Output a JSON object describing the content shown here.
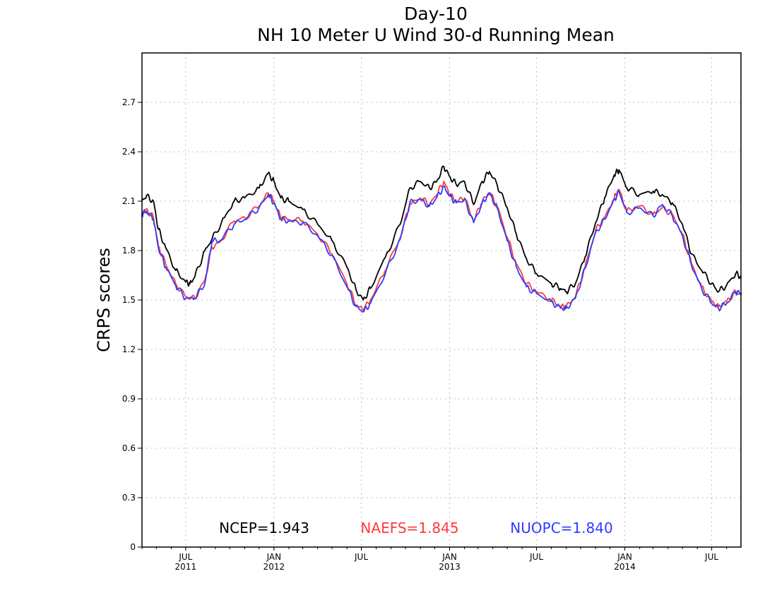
{
  "chart_data": {
    "type": "line",
    "title": "Day-10",
    "subtitle": "NH 10 Meter U Wind 30-d Running Mean",
    "xlabel": "",
    "ylabel": "CRPS scores",
    "xlim": [
      "2011-04-01",
      "2014-08-31"
    ],
    "ylim": [
      0,
      3.0
    ],
    "yticks": [
      {
        "value": 0,
        "label": "0"
      },
      {
        "value": 0.3,
        "label": "0.3"
      },
      {
        "value": 0.6,
        "label": "0.6"
      },
      {
        "value": 0.9,
        "label": "0.9"
      },
      {
        "value": 1.2,
        "label": "1.2"
      },
      {
        "value": 1.5,
        "label": "1.5"
      },
      {
        "value": 1.8,
        "label": "1.8"
      },
      {
        "value": 2.1,
        "label": "2.1"
      },
      {
        "value": 2.4,
        "label": "2.4"
      },
      {
        "value": 2.7,
        "label": "2.7"
      }
    ],
    "xticks": [
      {
        "date": "2011-07-01",
        "label": "JUL",
        "year": "2011"
      },
      {
        "date": "2012-01-01",
        "label": "JAN",
        "year": "2012"
      },
      {
        "date": "2012-07-01",
        "label": "JUL",
        "year": ""
      },
      {
        "date": "2013-01-01",
        "label": "JAN",
        "year": "2013"
      },
      {
        "date": "2013-07-01",
        "label": "JUL",
        "year": ""
      },
      {
        "date": "2014-01-01",
        "label": "JAN",
        "year": "2014"
      },
      {
        "date": "2014-07-01",
        "label": "JUL",
        "year": ""
      }
    ],
    "grid": true,
    "legend_position": "bottom",
    "series": [
      {
        "name": "NCEP",
        "legend_label": "NCEP=1.943",
        "color": "#000000",
        "points": [
          [
            "2011-04-01",
            2.1
          ],
          [
            "2011-04-10",
            2.13
          ],
          [
            "2011-04-25",
            2.1
          ],
          [
            "2011-05-05",
            1.93
          ],
          [
            "2011-05-20",
            1.82
          ],
          [
            "2011-06-10",
            1.68
          ],
          [
            "2011-07-01",
            1.61
          ],
          [
            "2011-07-10",
            1.6
          ],
          [
            "2011-07-20",
            1.64
          ],
          [
            "2011-08-10",
            1.8
          ],
          [
            "2011-08-25",
            1.87
          ],
          [
            "2011-09-20",
            2.0
          ],
          [
            "2011-10-10",
            2.1
          ],
          [
            "2011-11-01",
            2.12
          ],
          [
            "2011-12-01",
            2.18
          ],
          [
            "2011-12-20",
            2.27
          ],
          [
            "2012-01-01",
            2.22
          ],
          [
            "2012-01-15",
            2.12
          ],
          [
            "2012-02-01",
            2.1
          ],
          [
            "2012-03-01",
            2.05
          ],
          [
            "2012-04-01",
            1.96
          ],
          [
            "2012-05-01",
            1.86
          ],
          [
            "2012-06-01",
            1.7
          ],
          [
            "2012-06-20",
            1.56
          ],
          [
            "2012-07-05",
            1.5
          ],
          [
            "2012-07-20",
            1.57
          ],
          [
            "2012-08-20",
            1.76
          ],
          [
            "2012-09-20",
            1.96
          ],
          [
            "2012-10-10",
            2.18
          ],
          [
            "2012-11-01",
            2.22
          ],
          [
            "2012-11-20",
            2.18
          ],
          [
            "2012-12-05",
            2.22
          ],
          [
            "2012-12-20",
            2.31
          ],
          [
            "2013-01-01",
            2.25
          ],
          [
            "2013-01-15",
            2.2
          ],
          [
            "2013-02-01",
            2.22
          ],
          [
            "2013-02-20",
            2.08
          ],
          [
            "2013-03-10",
            2.22
          ],
          [
            "2013-03-25",
            2.28
          ],
          [
            "2013-04-10",
            2.2
          ],
          [
            "2013-05-01",
            2.06
          ],
          [
            "2013-05-20",
            1.9
          ],
          [
            "2013-06-10",
            1.75
          ],
          [
            "2013-07-01",
            1.66
          ],
          [
            "2013-08-01",
            1.6
          ],
          [
            "2013-08-20",
            1.57
          ],
          [
            "2013-09-01",
            1.55
          ],
          [
            "2013-09-20",
            1.6
          ],
          [
            "2013-10-10",
            1.76
          ],
          [
            "2013-11-01",
            1.97
          ],
          [
            "2013-11-20",
            2.12
          ],
          [
            "2013-12-10",
            2.26
          ],
          [
            "2013-12-20",
            2.29
          ],
          [
            "2014-01-05",
            2.18
          ],
          [
            "2014-02-01",
            2.14
          ],
          [
            "2014-03-01",
            2.16
          ],
          [
            "2014-03-20",
            2.14
          ],
          [
            "2014-04-10",
            2.09
          ],
          [
            "2014-05-01",
            1.96
          ],
          [
            "2014-05-20",
            1.78
          ],
          [
            "2014-06-10",
            1.68
          ],
          [
            "2014-07-01",
            1.6
          ],
          [
            "2014-07-15",
            1.55
          ],
          [
            "2014-08-01",
            1.59
          ],
          [
            "2014-08-20",
            1.66
          ],
          [
            "2014-08-31",
            1.64
          ]
        ]
      },
      {
        "name": "NAEFS",
        "legend_label": "NAEFS=1.845",
        "color": "#ff3b3b",
        "points": [
          [
            "2011-04-01",
            2.03
          ],
          [
            "2011-04-10",
            2.05
          ],
          [
            "2011-04-25",
            2.0
          ],
          [
            "2011-05-05",
            1.83
          ],
          [
            "2011-05-20",
            1.72
          ],
          [
            "2011-06-10",
            1.6
          ],
          [
            "2011-07-01",
            1.52
          ],
          [
            "2011-07-20",
            1.51
          ],
          [
            "2011-08-10",
            1.62
          ],
          [
            "2011-08-25",
            1.82
          ],
          [
            "2011-09-10",
            1.85
          ],
          [
            "2011-10-10",
            1.98
          ],
          [
            "2011-11-01",
            2.0
          ],
          [
            "2011-12-01",
            2.07
          ],
          [
            "2011-12-20",
            2.15
          ],
          [
            "2012-01-01",
            2.1
          ],
          [
            "2012-01-15",
            2.0
          ],
          [
            "2012-02-01",
            1.99
          ],
          [
            "2012-03-01",
            1.98
          ],
          [
            "2012-04-01",
            1.9
          ],
          [
            "2012-05-01",
            1.78
          ],
          [
            "2012-06-01",
            1.6
          ],
          [
            "2012-06-20",
            1.47
          ],
          [
            "2012-07-05",
            1.44
          ],
          [
            "2012-07-20",
            1.5
          ],
          [
            "2012-08-20",
            1.68
          ],
          [
            "2012-09-20",
            1.88
          ],
          [
            "2012-10-10",
            2.08
          ],
          [
            "2012-11-01",
            2.12
          ],
          [
            "2012-11-20",
            2.08
          ],
          [
            "2012-12-05",
            2.14
          ],
          [
            "2012-12-20",
            2.22
          ],
          [
            "2013-01-01",
            2.14
          ],
          [
            "2013-01-15",
            2.1
          ],
          [
            "2013-02-01",
            2.12
          ],
          [
            "2013-02-20",
            1.98
          ],
          [
            "2013-03-10",
            2.1
          ],
          [
            "2013-03-25",
            2.15
          ],
          [
            "2013-04-10",
            2.07
          ],
          [
            "2013-05-01",
            1.88
          ],
          [
            "2013-05-20",
            1.72
          ],
          [
            "2013-06-10",
            1.6
          ],
          [
            "2013-07-01",
            1.55
          ],
          [
            "2013-08-01",
            1.5
          ],
          [
            "2013-08-20",
            1.46
          ],
          [
            "2013-09-01",
            1.46
          ],
          [
            "2013-09-20",
            1.52
          ],
          [
            "2013-10-10",
            1.7
          ],
          [
            "2013-11-01",
            1.92
          ],
          [
            "2013-11-20",
            2.0
          ],
          [
            "2013-12-10",
            2.12
          ],
          [
            "2013-12-20",
            2.17
          ],
          [
            "2014-01-05",
            2.04
          ],
          [
            "2014-02-01",
            2.07
          ],
          [
            "2014-03-01",
            2.02
          ],
          [
            "2014-03-20",
            2.06
          ],
          [
            "2014-04-10",
            2.02
          ],
          [
            "2014-05-01",
            1.9
          ],
          [
            "2014-05-20",
            1.72
          ],
          [
            "2014-06-10",
            1.58
          ],
          [
            "2014-07-01",
            1.49
          ],
          [
            "2014-07-15",
            1.46
          ],
          [
            "2014-08-01",
            1.49
          ],
          [
            "2014-08-20",
            1.55
          ],
          [
            "2014-08-31",
            1.53
          ]
        ]
      },
      {
        "name": "NUOPC",
        "legend_label": "NUOPC=1.840",
        "color": "#2e3cff",
        "points": [
          [
            "2011-04-01",
            2.02
          ],
          [
            "2011-04-10",
            2.04
          ],
          [
            "2011-04-25",
            1.99
          ],
          [
            "2011-05-05",
            1.82
          ],
          [
            "2011-05-20",
            1.7
          ],
          [
            "2011-06-10",
            1.59
          ],
          [
            "2011-07-01",
            1.51
          ],
          [
            "2011-07-20",
            1.51
          ],
          [
            "2011-08-10",
            1.6
          ],
          [
            "2011-08-25",
            1.86
          ],
          [
            "2011-09-10",
            1.86
          ],
          [
            "2011-10-10",
            1.96
          ],
          [
            "2011-11-01",
            1.99
          ],
          [
            "2011-12-01",
            2.06
          ],
          [
            "2011-12-20",
            2.14
          ],
          [
            "2012-01-01",
            2.09
          ],
          [
            "2012-01-15",
            1.99
          ],
          [
            "2012-02-01",
            1.98
          ],
          [
            "2012-03-01",
            1.97
          ],
          [
            "2012-04-01",
            1.89
          ],
          [
            "2012-05-01",
            1.77
          ],
          [
            "2012-06-01",
            1.58
          ],
          [
            "2012-06-20",
            1.46
          ],
          [
            "2012-07-05",
            1.43
          ],
          [
            "2012-07-20",
            1.48
          ],
          [
            "2012-08-20",
            1.66
          ],
          [
            "2012-09-20",
            1.87
          ],
          [
            "2012-10-10",
            2.09
          ],
          [
            "2012-11-01",
            2.11
          ],
          [
            "2012-11-20",
            2.07
          ],
          [
            "2012-12-05",
            2.12
          ],
          [
            "2012-12-20",
            2.19
          ],
          [
            "2013-01-01",
            2.13
          ],
          [
            "2013-01-15",
            2.09
          ],
          [
            "2013-02-01",
            2.11
          ],
          [
            "2013-02-20",
            1.97
          ],
          [
            "2013-03-10",
            2.09
          ],
          [
            "2013-03-25",
            2.15
          ],
          [
            "2013-04-10",
            2.06
          ],
          [
            "2013-05-01",
            1.86
          ],
          [
            "2013-05-20",
            1.7
          ],
          [
            "2013-06-10",
            1.58
          ],
          [
            "2013-07-01",
            1.54
          ],
          [
            "2013-08-01",
            1.49
          ],
          [
            "2013-08-20",
            1.45
          ],
          [
            "2013-09-01",
            1.45
          ],
          [
            "2013-09-20",
            1.51
          ],
          [
            "2013-10-10",
            1.69
          ],
          [
            "2013-11-01",
            1.91
          ],
          [
            "2013-11-20",
            1.99
          ],
          [
            "2013-12-10",
            2.11
          ],
          [
            "2013-12-20",
            2.16
          ],
          [
            "2014-01-05",
            2.03
          ],
          [
            "2014-02-01",
            2.06
          ],
          [
            "2014-03-01",
            2.01
          ],
          [
            "2014-03-20",
            2.08
          ],
          [
            "2014-04-10",
            2.01
          ],
          [
            "2014-05-01",
            1.89
          ],
          [
            "2014-05-20",
            1.71
          ],
          [
            "2014-06-10",
            1.57
          ],
          [
            "2014-07-01",
            1.48
          ],
          [
            "2014-07-15",
            1.45
          ],
          [
            "2014-08-01",
            1.48
          ],
          [
            "2014-08-20",
            1.55
          ],
          [
            "2014-08-31",
            1.54
          ]
        ]
      }
    ]
  }
}
